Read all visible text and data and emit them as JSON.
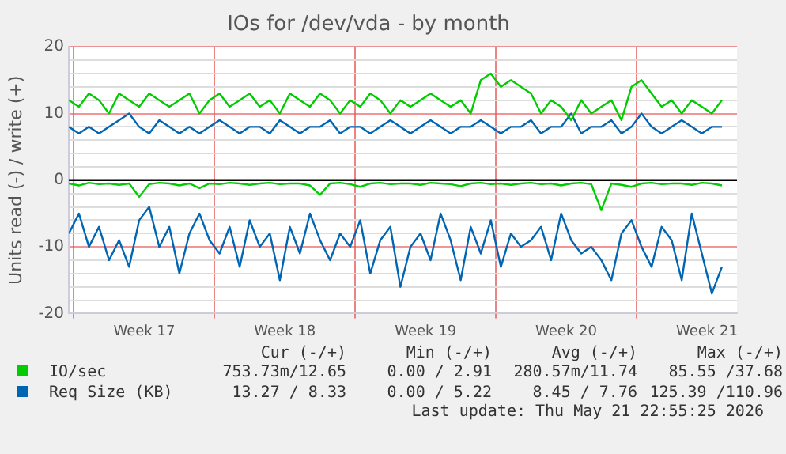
{
  "chart_data": {
    "type": "line",
    "title": "IOs for /dev/vda - by month",
    "ylabel": "Units read (-) / write (+)",
    "x": [
      "2026-04-19T18:00",
      "2026-04-20T06:00",
      "2026-04-20T18:00",
      "2026-04-21T06:00",
      "2026-04-21T18:00",
      "2026-04-22T06:00",
      "2026-04-22T18:00",
      "2026-04-23T06:00",
      "2026-04-23T18:00",
      "2026-04-24T06:00",
      "2026-04-24T18:00",
      "2026-04-25T06:00",
      "2026-04-25T18:00",
      "2026-04-26T06:00",
      "2026-04-26T18:00",
      "2026-04-27T06:00",
      "2026-04-27T18:00",
      "2026-04-28T06:00",
      "2026-04-28T18:00",
      "2026-04-29T06:00",
      "2026-04-29T18:00",
      "2026-04-30T06:00",
      "2026-04-30T18:00",
      "2026-05-01T06:00",
      "2026-05-01T18:00",
      "2026-05-02T06:00",
      "2026-05-02T18:00",
      "2026-05-03T06:00",
      "2026-05-03T18:00",
      "2026-05-04T06:00",
      "2026-05-04T18:00",
      "2026-05-05T06:00",
      "2026-05-05T18:00",
      "2026-05-06T06:00",
      "2026-05-06T18:00",
      "2026-05-07T06:00",
      "2026-05-07T18:00",
      "2026-05-08T06:00",
      "2026-05-08T18:00",
      "2026-05-09T06:00",
      "2026-05-09T18:00",
      "2026-05-10T06:00",
      "2026-05-10T18:00",
      "2026-05-11T06:00",
      "2026-05-11T18:00",
      "2026-05-12T06:00",
      "2026-05-12T18:00",
      "2026-05-13T06:00",
      "2026-05-13T18:00",
      "2026-05-14T06:00",
      "2026-05-14T18:00",
      "2026-05-15T06:00",
      "2026-05-15T18:00",
      "2026-05-16T06:00",
      "2026-05-16T18:00",
      "2026-05-17T06:00",
      "2026-05-17T18:00",
      "2026-05-18T06:00",
      "2026-05-18T18:00",
      "2026-05-19T06:00",
      "2026-05-19T18:00",
      "2026-05-20T06:00",
      "2026-05-20T18:00",
      "2026-05-21T06:00",
      "2026-05-21T18:00",
      "2026-05-22T06:00"
    ],
    "xlim": [
      "2026-04-19T18:00",
      "2026-05-23T00:00"
    ],
    "xticks": [
      {
        "value": "2026-04-20T00:00",
        "label": null
      },
      {
        "value": "2026-04-23T12:00",
        "label": "Week 17"
      },
      {
        "value": "2026-04-27T00:00",
        "label": null
      },
      {
        "value": "2026-04-30T12:00",
        "label": "Week 18"
      },
      {
        "value": "2026-05-04T00:00",
        "label": null
      },
      {
        "value": "2026-05-07T12:00",
        "label": "Week 19"
      },
      {
        "value": "2026-05-11T00:00",
        "label": null
      },
      {
        "value": "2026-05-14T12:00",
        "label": "Week 20"
      },
      {
        "value": "2026-05-18T00:00",
        "label": null
      },
      {
        "value": "2026-05-21T12:00",
        "label": "Week 21"
      }
    ],
    "ylim": [
      -20,
      20
    ],
    "yticks": [
      -20,
      {
        "value": -18,
        "label": null
      },
      {
        "value": -16,
        "label": null
      },
      {
        "value": -14,
        "label": null
      },
      {
        "value": -12,
        "label": null
      },
      -10,
      {
        "value": -8,
        "label": null
      },
      {
        "value": -6,
        "label": null
      },
      {
        "value": -4,
        "label": null
      },
      {
        "value": -2,
        "label": null
      },
      0,
      {
        "value": 2,
        "label": null
      },
      {
        "value": 4,
        "label": null
      },
      {
        "value": 6,
        "label": null
      },
      {
        "value": 8,
        "label": null
      },
      10,
      {
        "value": 12,
        "label": null
      },
      {
        "value": 14,
        "label": null
      },
      {
        "value": 16,
        "label": null
      },
      {
        "value": 18,
        "label": null
      },
      20
    ],
    "grid": true,
    "legend": "bottom",
    "marker": "none",
    "line_style": "solid",
    "ref_lines": [
      {
        "axis": "y",
        "value": 0,
        "label": null,
        "color": "#000000"
      }
    ],
    "series": [
      {
        "name": "IO/sec",
        "color": "#00cc00",
        "values": [
          12,
          11,
          13,
          12,
          10,
          13,
          12,
          11,
          13,
          12,
          11,
          12,
          13,
          10,
          12,
          13,
          11,
          12,
          13,
          11,
          12,
          10,
          13,
          12,
          11,
          13,
          12,
          10,
          12,
          11,
          13,
          12,
          10,
          12,
          11,
          12,
          13,
          12,
          11,
          12,
          10,
          15,
          16,
          14,
          15,
          14,
          13,
          10,
          12,
          11,
          9,
          12,
          10,
          11,
          12,
          9,
          14,
          15,
          13,
          11,
          12,
          10,
          12,
          11,
          10,
          12
        ]
      },
      {
        "color": "#00cc00",
        "values": [
          -0.5,
          -0.8,
          -0.4,
          -0.6,
          -0.5,
          -0.7,
          -0.5,
          -2.5,
          -0.6,
          -0.4,
          -0.5,
          -0.8,
          -0.5,
          -1.2,
          -0.5,
          -0.6,
          -0.4,
          -0.5,
          -0.7,
          -0.5,
          -0.4,
          -0.6,
          -0.5,
          -0.5,
          -0.8,
          -2.2,
          -0.5,
          -0.4,
          -0.6,
          -1,
          -0.5,
          -0.4,
          -0.6,
          -0.5,
          -0.5,
          -0.7,
          -0.4,
          -0.5,
          -0.6,
          -0.9,
          -0.5,
          -0.4,
          -0.6,
          -0.5,
          -0.7,
          -0.5,
          -0.4,
          -0.6,
          -0.5,
          -0.8,
          -0.5,
          -0.4,
          -0.6,
          -4.5,
          -0.5,
          -0.7,
          -1,
          -0.5,
          -0.4,
          -0.6,
          -0.5,
          -0.5,
          -0.7,
          -0.4,
          -0.5,
          -0.8
        ]
      },
      {
        "name": "Req Size (KB)",
        "color": "#0066b3",
        "values": [
          8,
          7,
          8,
          7,
          8,
          9,
          10,
          8,
          7,
          9,
          8,
          7,
          8,
          7,
          8,
          9,
          8,
          7,
          8,
          8,
          7,
          9,
          8,
          7,
          8,
          8,
          9,
          7,
          8,
          8,
          7,
          8,
          9,
          8,
          7,
          8,
          9,
          8,
          7,
          8,
          8,
          9,
          8,
          7,
          8,
          8,
          9,
          7,
          8,
          8,
          10,
          7,
          8,
          8,
          9,
          7,
          8,
          10,
          8,
          7,
          8,
          9,
          8,
          7,
          8,
          8
        ]
      },
      {
        "color": "#0066b3",
        "values": [
          -8,
          -5,
          -10,
          -7,
          -12,
          -9,
          -13,
          -6,
          -4,
          -10,
          -7,
          -14,
          -8,
          -5,
          -9,
          -11,
          -7,
          -13,
          -6,
          -10,
          -8,
          -15,
          -7,
          -11,
          -5,
          -9,
          -12,
          -8,
          -10,
          -6,
          -14,
          -9,
          -7,
          -16,
          -10,
          -8,
          -12,
          -5,
          -9,
          -15,
          -7,
          -11,
          -6,
          -13,
          -8,
          -10,
          -9,
          -7,
          -12,
          -5,
          -9,
          -11,
          -10,
          -12,
          -15,
          -8,
          -6,
          -10,
          -13,
          -7,
          -9,
          -15,
          -5,
          -11,
          -17,
          -13
        ]
      }
    ],
    "annotations": [
      "Cur (-/+)",
      "Min (-/+)",
      "Avg (-/+)",
      "Max (-/+)",
      "753.73m/12.65",
      "0.00 / 2.91",
      "280.57m/11.74",
      "85.55 /37.68",
      "13.27 / 8.33",
      "0.00 / 5.22",
      "8.45 / 7.76",
      "125.39 /110.96",
      "Last update: Thu May 21 22:55:25 2026"
    ]
  }
}
